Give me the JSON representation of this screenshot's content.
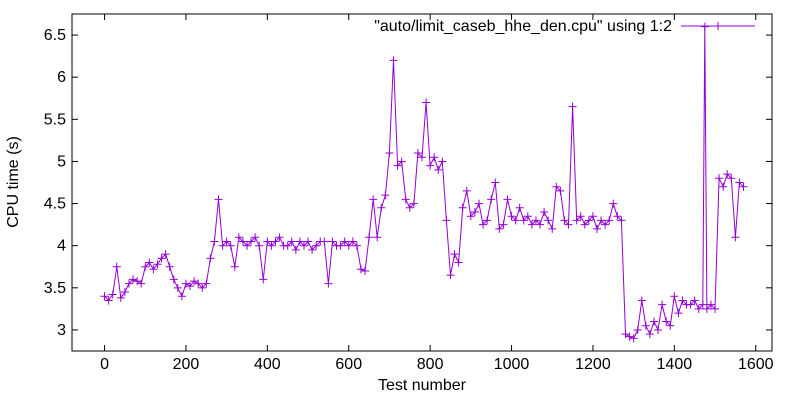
{
  "chart_data": {
    "type": "line",
    "xlabel": "Test number",
    "ylabel": "CPU time (s)",
    "xlim": [
      -80,
      1640
    ],
    "ylim": [
      2.75,
      6.75
    ],
    "xticks": [
      0,
      200,
      400,
      600,
      800,
      1000,
      1200,
      1400,
      1600
    ],
    "yticks": [
      3,
      3.5,
      4,
      4.5,
      5,
      5.5,
      6,
      6.5
    ],
    "ytick_labels": [
      "3",
      "3.5",
      "4",
      "4.5",
      "5",
      "5.5",
      "6",
      "6.5"
    ],
    "legend_position": "top-right",
    "grid": false,
    "marker": "plus",
    "color": "#9400d3",
    "series": [
      {
        "name": "\"auto/limit_caseb_hhe_den.cpu\" using 1:2",
        "x": [
          0,
          10,
          20,
          30,
          40,
          50,
          60,
          70,
          80,
          90,
          100,
          110,
          120,
          130,
          140,
          150,
          160,
          170,
          180,
          190,
          200,
          210,
          220,
          230,
          240,
          250,
          260,
          270,
          280,
          290,
          300,
          310,
          320,
          330,
          340,
          350,
          360,
          370,
          380,
          390,
          400,
          410,
          420,
          430,
          440,
          450,
          460,
          470,
          480,
          490,
          500,
          510,
          520,
          530,
          540,
          550,
          560,
          570,
          580,
          590,
          600,
          610,
          620,
          630,
          640,
          650,
          660,
          670,
          680,
          690,
          700,
          710,
          720,
          730,
          740,
          750,
          760,
          770,
          780,
          790,
          800,
          810,
          820,
          830,
          840,
          850,
          860,
          870,
          880,
          890,
          900,
          910,
          920,
          930,
          940,
          950,
          960,
          970,
          980,
          990,
          1000,
          1010,
          1020,
          1030,
          1040,
          1050,
          1060,
          1070,
          1080,
          1090,
          1100,
          1110,
          1120,
          1130,
          1140,
          1150,
          1160,
          1170,
          1180,
          1190,
          1200,
          1210,
          1220,
          1230,
          1240,
          1250,
          1260,
          1270,
          1280,
          1290,
          1300,
          1310,
          1320,
          1330,
          1340,
          1350,
          1360,
          1370,
          1380,
          1390,
          1400,
          1410,
          1420,
          1430,
          1440,
          1450,
          1460,
          1470,
          1475,
          1480,
          1490,
          1500,
          1510,
          1520,
          1530,
          1540,
          1550,
          1560,
          1570
        ],
        "y": [
          3.4,
          3.35,
          3.42,
          3.75,
          3.38,
          3.45,
          3.55,
          3.6,
          3.58,
          3.55,
          3.75,
          3.8,
          3.72,
          3.78,
          3.85,
          3.9,
          3.75,
          3.6,
          3.5,
          3.4,
          3.55,
          3.52,
          3.58,
          3.55,
          3.5,
          3.55,
          3.85,
          4.05,
          4.55,
          4.0,
          4.05,
          4.0,
          3.75,
          4.1,
          4.05,
          4.0,
          4.05,
          4.1,
          4.0,
          3.6,
          4.05,
          4.0,
          4.05,
          4.1,
          4.0,
          4.0,
          4.05,
          3.95,
          4.05,
          4.0,
          4.05,
          3.95,
          4.0,
          4.05,
          4.05,
          3.55,
          4.05,
          4.0,
          4.0,
          4.05,
          4.0,
          4.05,
          4.0,
          3.72,
          3.7,
          4.1,
          4.55,
          4.1,
          4.45,
          4.6,
          5.1,
          6.2,
          4.95,
          5.0,
          4.55,
          4.45,
          4.5,
          5.1,
          5.05,
          5.7,
          4.95,
          5.05,
          4.9,
          5.0,
          4.3,
          3.65,
          3.9,
          3.8,
          4.45,
          4.65,
          4.35,
          4.4,
          4.5,
          4.25,
          4.3,
          4.55,
          4.75,
          4.2,
          4.25,
          4.55,
          4.35,
          4.3,
          4.45,
          4.3,
          4.35,
          4.25,
          4.3,
          4.25,
          4.4,
          4.3,
          4.2,
          4.7,
          4.65,
          4.3,
          4.25,
          5.65,
          4.3,
          4.35,
          4.25,
          4.3,
          4.35,
          4.2,
          4.3,
          4.25,
          4.3,
          4.5,
          4.35,
          4.3,
          2.95,
          2.92,
          2.9,
          3.0,
          3.35,
          3.05,
          2.95,
          3.1,
          3.0,
          3.3,
          3.1,
          3.05,
          3.4,
          3.2,
          3.35,
          3.3,
          3.3,
          3.35,
          3.25,
          3.3,
          6.6,
          3.25,
          3.3,
          3.25,
          4.8,
          4.7,
          4.85,
          4.8,
          4.1,
          4.75,
          4.7
        ]
      }
    ]
  }
}
